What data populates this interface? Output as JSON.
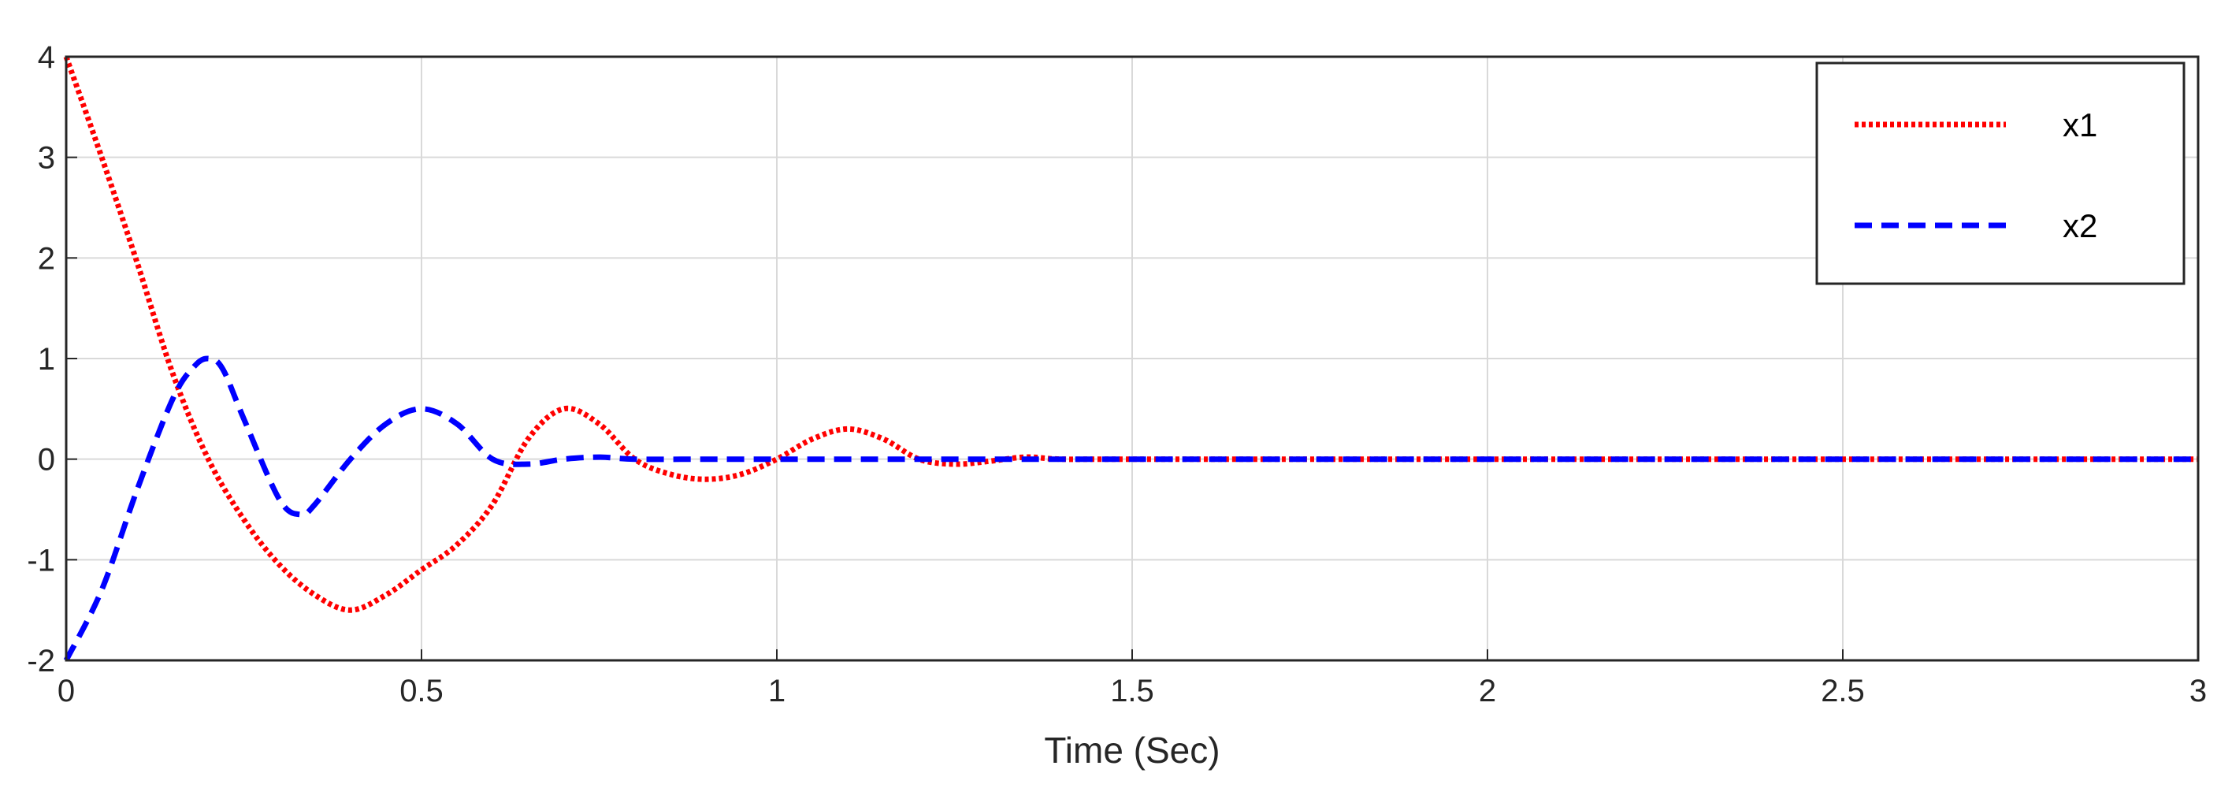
{
  "chart_data": {
    "type": "line",
    "title": "",
    "xlabel": "Time (Sec)",
    "ylabel": "",
    "xlim": [
      0,
      3
    ],
    "ylim": [
      -2,
      4
    ],
    "xticks": [
      0,
      0.5,
      1,
      1.5,
      2,
      2.5,
      3
    ],
    "xtick_labels": [
      "0",
      "0.5",
      "1",
      "1.5",
      "2",
      "2.5",
      "3"
    ],
    "yticks": [
      -2,
      -1,
      0,
      1,
      2,
      3,
      4
    ],
    "ytick_labels": [
      "-2",
      "-1",
      "0",
      "1",
      "2",
      "3",
      "4"
    ],
    "grid": true,
    "legend_position": "top-right",
    "series": [
      {
        "name": "x1",
        "color": "#ff0000",
        "style": "dotted",
        "x": [
          0,
          0.05,
          0.1,
          0.15,
          0.2,
          0.25,
          0.3,
          0.35,
          0.4,
          0.45,
          0.5,
          0.55,
          0.6,
          0.65,
          0.7,
          0.75,
          0.8,
          0.85,
          0.9,
          0.95,
          1.0,
          1.05,
          1.1,
          1.15,
          1.2,
          1.25,
          1.3,
          1.35,
          1.4,
          1.5,
          2.0,
          2.5,
          3.0
        ],
        "y": [
          4,
          3.0,
          1.95,
          0.85,
          0.0,
          -0.6,
          -1.05,
          -1.35,
          -1.5,
          -1.35,
          -1.1,
          -0.85,
          -0.45,
          0.2,
          0.5,
          0.35,
          0.0,
          -0.15,
          -0.2,
          -0.15,
          0.0,
          0.2,
          0.3,
          0.2,
          0.0,
          -0.05,
          -0.02,
          0.02,
          0.0,
          0.0,
          0.0,
          0.0,
          0.0
        ]
      },
      {
        "name": "x2",
        "color": "#0000ff",
        "style": "dashed",
        "x": [
          0,
          0.05,
          0.1,
          0.15,
          0.18,
          0.2,
          0.22,
          0.25,
          0.3,
          0.33,
          0.35,
          0.4,
          0.45,
          0.5,
          0.55,
          0.6,
          0.65,
          0.7,
          0.75,
          0.8,
          0.9,
          1.0,
          1.5,
          2.0,
          2.5,
          3.0
        ],
        "y": [
          -2,
          -1.3,
          -0.3,
          0.6,
          0.92,
          1.0,
          0.9,
          0.4,
          -0.4,
          -0.55,
          -0.45,
          0.0,
          0.35,
          0.5,
          0.35,
          0.0,
          -0.05,
          0.0,
          0.02,
          0.0,
          0.0,
          0.0,
          0.0,
          0.0,
          0.0,
          0.0
        ]
      }
    ]
  }
}
